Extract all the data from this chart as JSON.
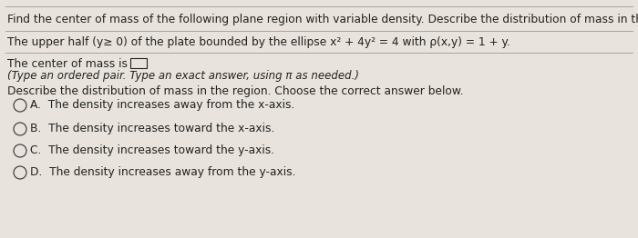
{
  "bg_color": "#e8e4dd",
  "text_color": "#222222",
  "line1": "Find the center of mass of the following plane region with variable density. Describe the distribution of mass in the region.",
  "line2": "The upper half (y≥ 0) of the plate bounded by the ellipse x² + 4y² = 4 with ρ(x,y) = 1 + y.",
  "line3a": "The center of mass is",
  "line3b": "(Type an ordered pair. Type an exact answer, using π as needed.)",
  "line4": "Describe the distribution of mass in the region. Choose the correct answer below.",
  "options": [
    {
      "label": "A.",
      "text": "The density increases away from the x-axis."
    },
    {
      "label": "B.",
      "text": "The density increases toward the x-axis."
    },
    {
      "label": "C.",
      "text": "The density increases toward the y-axis."
    },
    {
      "label": "D.",
      "text": "The density increases away from the y-axis."
    }
  ],
  "font_size_main": 8.8,
  "font_size_small": 8.5,
  "sep_color": "#aaa49c",
  "circle_color": "#444444"
}
